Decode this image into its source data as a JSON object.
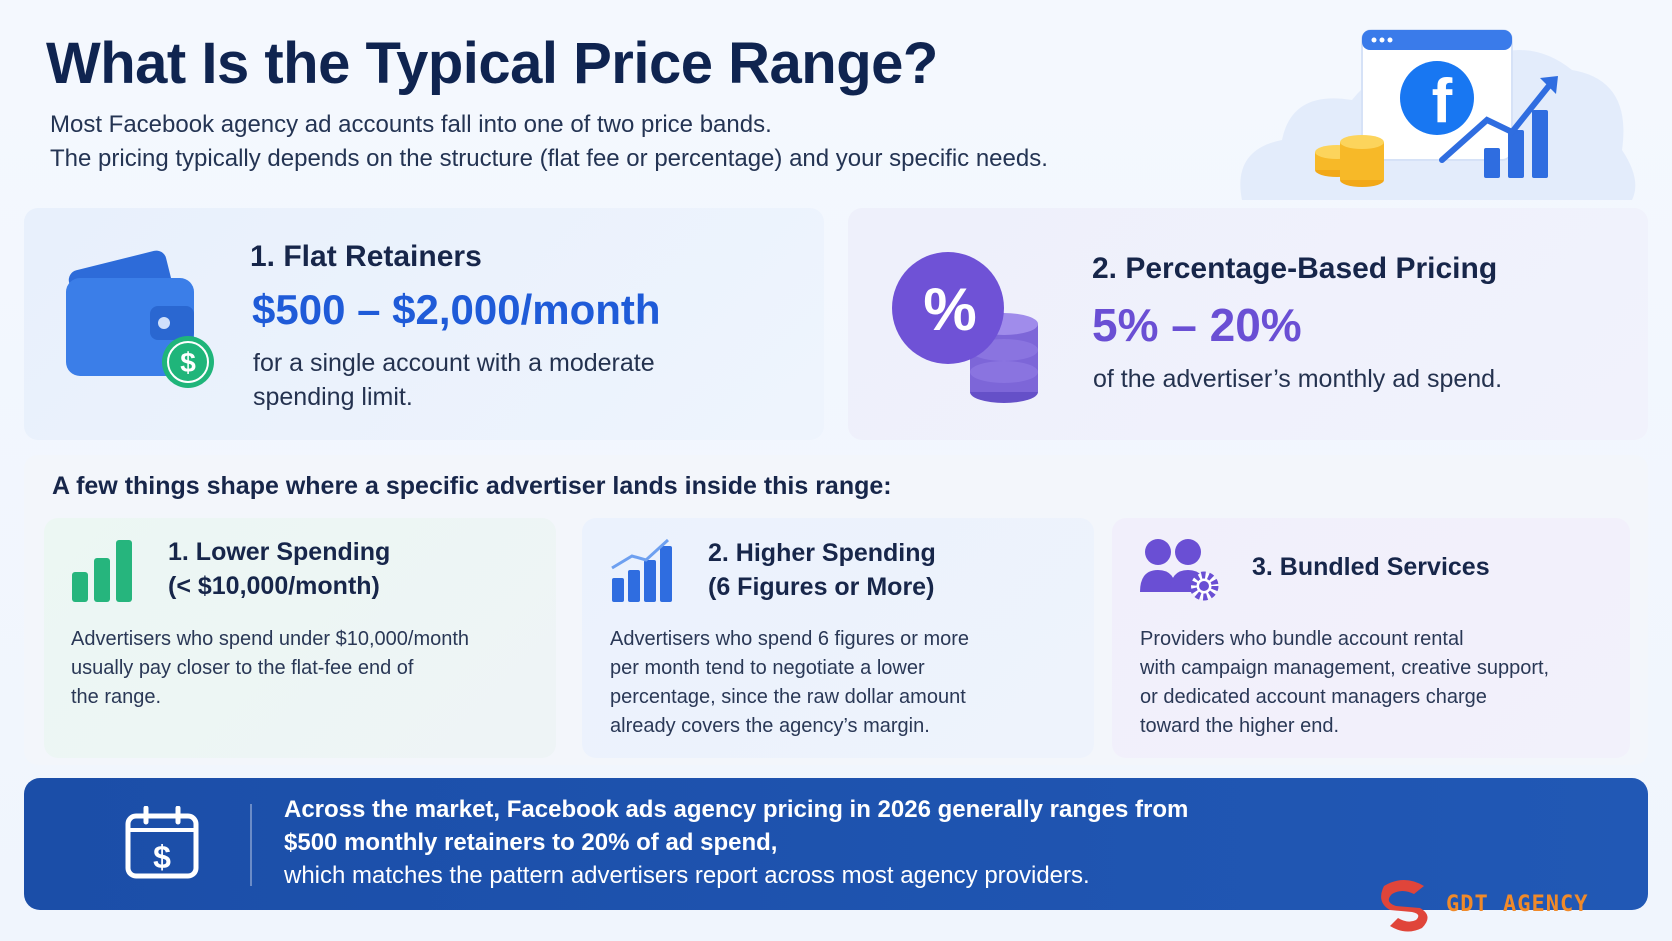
{
  "header": {
    "title": "What Is the Typical Price Range?",
    "subtitle_line1": "Most Facebook agency ad accounts fall into one of two price bands.",
    "subtitle_line2": "The pricing typically depends on the structure (flat fee or percentage) and your specific needs."
  },
  "hero": {
    "icon": "facebook-growth-illustration",
    "facebook_letter": "f"
  },
  "bands": [
    {
      "title": "1. Flat Retainers",
      "price": "$500 – $2,000/month",
      "desc_line1": "for a single account with a moderate",
      "desc_line2": "spending limit.",
      "icon": "wallet-dollar-icon",
      "color": "#1f5bd8"
    },
    {
      "title": "2. Percentage-Based Pricing",
      "price": "5% – 20%",
      "desc": "of the advertiser’s monthly ad spend.",
      "icon": "percent-coins-icon",
      "color": "#6a4fd4",
      "icon_symbol": "%"
    }
  ],
  "factors": {
    "heading": "A few things shape where a specific advertiser lands inside this range:",
    "items": [
      {
        "title_line1": "1. Lower Spending",
        "title_line2": "(< $10,000/month)",
        "desc_lines": [
          "Advertisers who spend under $10,000/month",
          "usually pay closer to the flat-fee end of",
          "the range."
        ],
        "icon": "bar-chart-icon"
      },
      {
        "title_line1": "2. Higher Spending",
        "title_line2": "(6 Figures or More)",
        "desc_lines": [
          "Advertisers who spend 6 figures or more",
          "per month tend to negotiate a lower",
          "percentage, since the raw dollar amount",
          "already covers the agency’s margin."
        ],
        "icon": "growth-chart-icon"
      },
      {
        "title": "3. Bundled Services",
        "desc_lines": [
          "Providers who bundle account rental",
          "with campaign management, creative support,",
          "or dedicated account managers charge",
          "toward the higher end."
        ],
        "icon": "team-gear-icon"
      }
    ]
  },
  "banner": {
    "bold_line1": "Across the market, Facebook ads agency pricing in 2026 generally ranges from",
    "bold_line2": "$500 monthly retainers to 20% of ad spend,",
    "line3": "which matches the pattern advertisers report across most agency providers.",
    "icon": "calendar-dollar-icon",
    "icon_symbol": "$"
  },
  "brand": {
    "logo_text": "GDT AGENCY",
    "color": "#f08a2a"
  }
}
